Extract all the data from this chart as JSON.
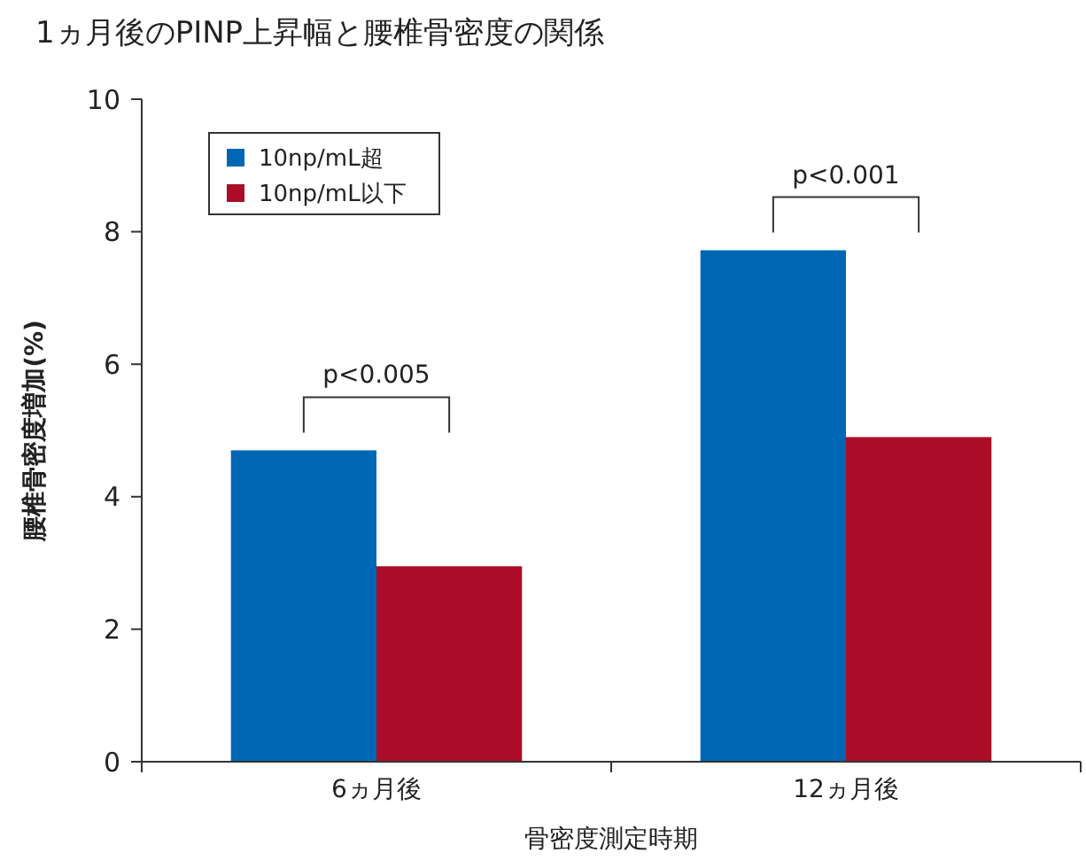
{
  "chart_data": {
    "type": "bar",
    "title": "1ヵ月後のPINP上昇幅と腰椎骨密度の関係",
    "xlabel": "骨密度測定時期",
    "ylabel": "腰椎骨密度増加(%)",
    "categories": [
      "6ヵ月後",
      "12ヵ月後"
    ],
    "series": [
      {
        "name": "10np/mL超",
        "color": "#0067b4",
        "values": [
          4.7,
          7.72
        ]
      },
      {
        "name": "10np/mL以下",
        "color": "#ab0c27",
        "values": [
          2.95,
          4.9
        ]
      }
    ],
    "ylim": [
      0,
      10
    ],
    "yticks": [
      0,
      2,
      4,
      6,
      8,
      10
    ],
    "grid": false,
    "legend": "top left",
    "annotations": [
      "p<0.005",
      "p<0.001"
    ]
  }
}
